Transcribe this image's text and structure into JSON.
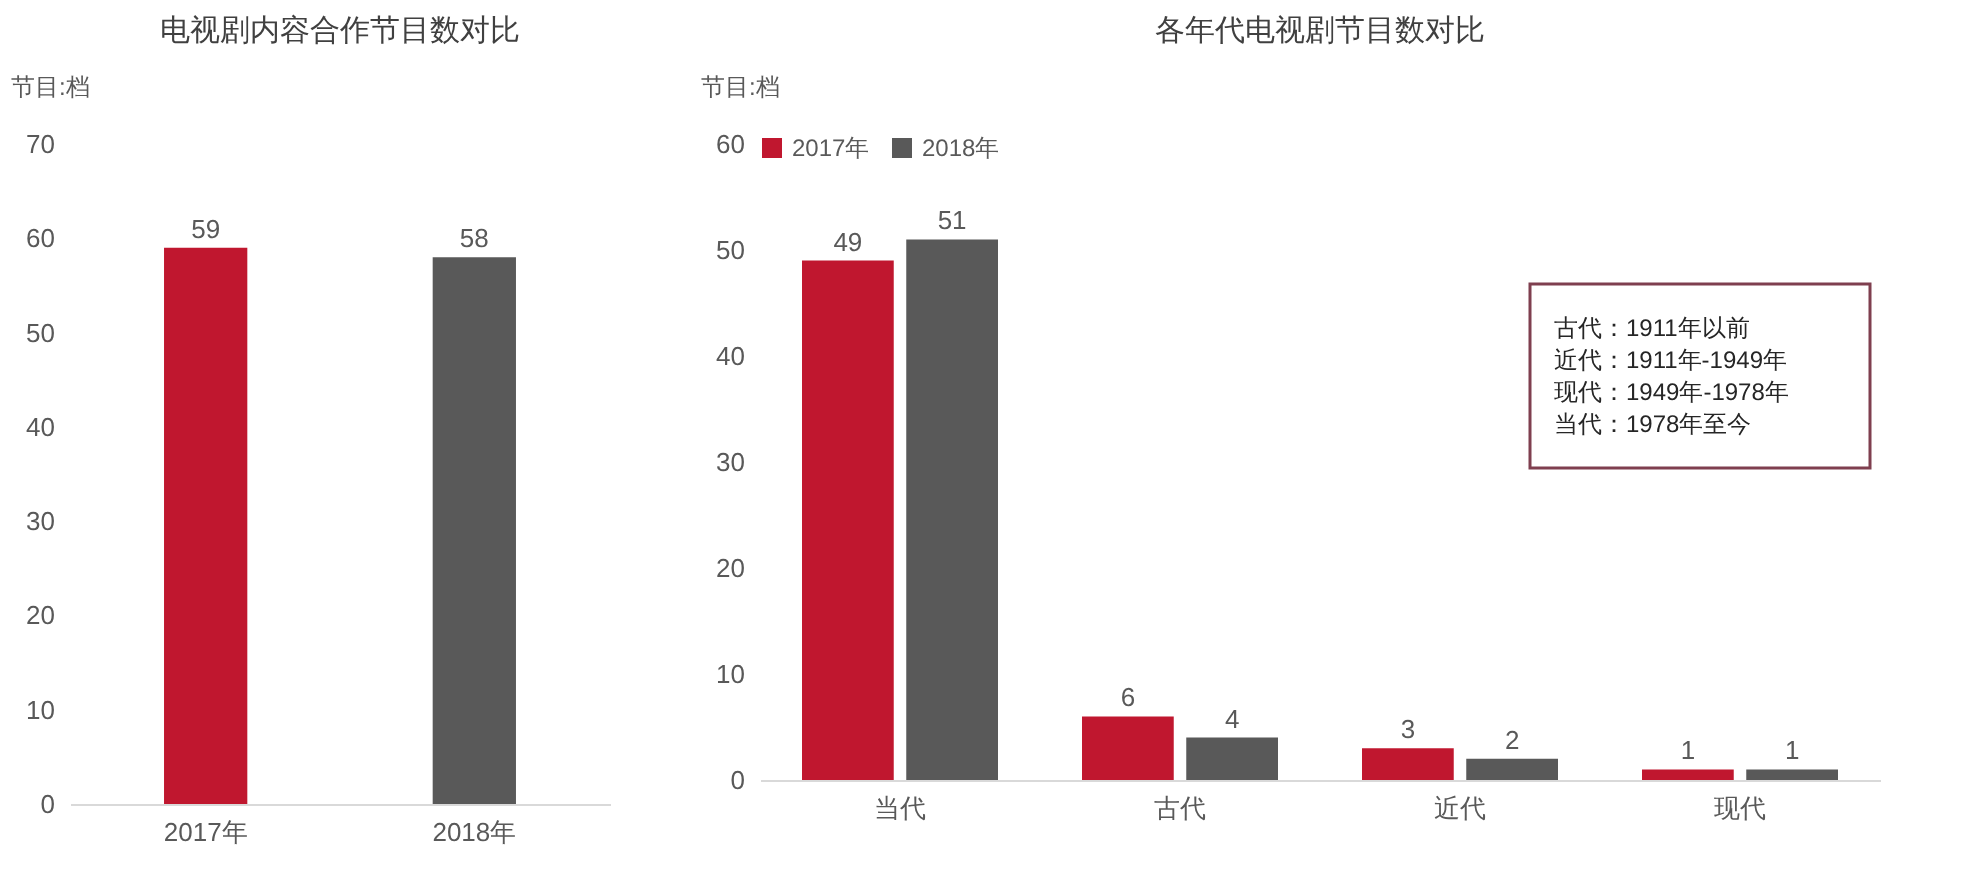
{
  "chart_data": [
    {
      "type": "bar",
      "title": "电视剧内容合作节目数对比",
      "ylabel": "节目:档",
      "categories": [
        "2017年",
        "2018年"
      ],
      "values": [
        59,
        58
      ],
      "colors": [
        "#c0172f",
        "#595959"
      ],
      "ylim": [
        0,
        70
      ],
      "yticks": [
        0,
        10,
        20,
        30,
        40,
        50,
        60,
        70
      ],
      "data_labels": true,
      "grid": false
    },
    {
      "type": "bar",
      "title": "各年代电视剧节目数对比",
      "ylabel": "节目:档",
      "categories": [
        "当代",
        "古代",
        "近代",
        "现代"
      ],
      "series": [
        {
          "name": "2017年",
          "color": "#c0172f",
          "values": [
            49,
            6,
            3,
            1
          ]
        },
        {
          "name": "2018年",
          "color": "#595959",
          "values": [
            51,
            4,
            2,
            1
          ]
        }
      ],
      "ylim": [
        0,
        60
      ],
      "yticks": [
        0,
        10,
        20,
        30,
        40,
        50,
        60
      ],
      "data_labels": true,
      "grid": false,
      "legend": "top",
      "annotations": [
        "古代：1911年以前",
        "近代：1911年-1949年",
        "现代：1949年-1978年",
        "当代：1978年至今"
      ]
    }
  ]
}
